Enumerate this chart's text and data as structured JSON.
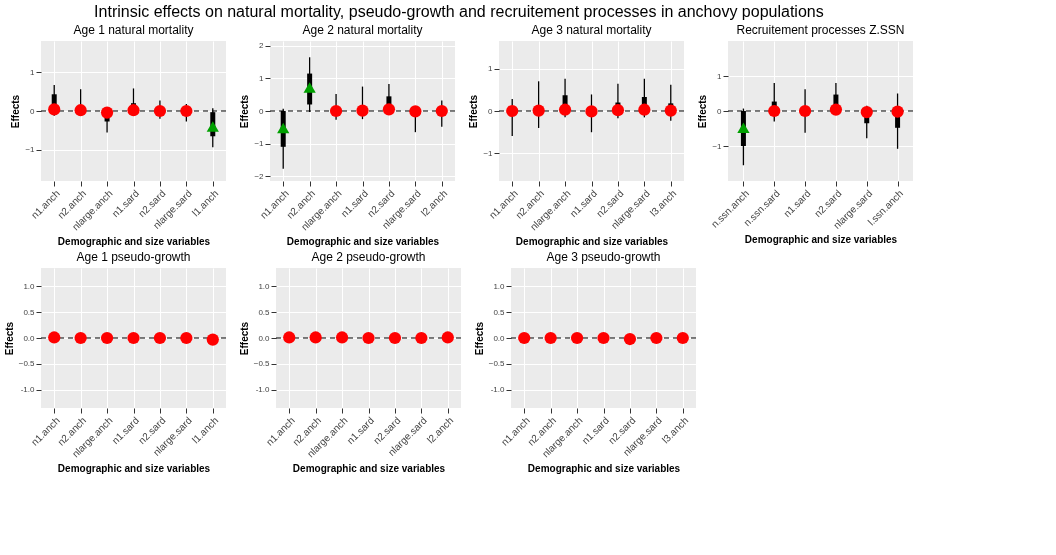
{
  "chart_data": [
    {
      "type": "box",
      "title": "Age 1 natural mortality",
      "xlabel": "Demographic and size variables",
      "ylabel": "Effects",
      "annotations": [
        "Intrinsic effects on natural mortality, pseudo-growth and recruitement processes in anchovy populations"
      ],
      "categories": [
        "n1.anch",
        "n2.anch",
        "nlarge.anch",
        "n1.sard",
        "n2.sard",
        "nlarge.sard",
        "l1.anch"
      ],
      "ylim": [
        -1.8,
        1.8
      ],
      "yticks": [
        -1,
        0,
        1
      ],
      "grid": true,
      "ref_lines": [
        {
          "axis": "y",
          "value": 0,
          "line_style": "dashed"
        }
      ],
      "series": [
        {
          "type": "box",
          "color": "#000000",
          "boxes": [
            {
              "low": -0.12,
              "q1": 0.0,
              "median": 0.04,
              "q3": 0.43,
              "high": 0.67
            },
            {
              "low": -0.12,
              "q1": -0.05,
              "median": 0.02,
              "q3": 0.15,
              "high": 0.56
            },
            {
              "low": -0.55,
              "q1": -0.27,
              "median": -0.04,
              "q3": 0.0,
              "high": 0.05
            },
            {
              "low": -0.05,
              "q1": -0.02,
              "median": 0.02,
              "q3": 0.2,
              "high": 0.58
            },
            {
              "low": -0.2,
              "q1": -0.08,
              "median": 0.0,
              "q3": 0.08,
              "high": 0.27
            },
            {
              "low": -0.27,
              "q1": -0.1,
              "median": 0.0,
              "q3": 0.05,
              "high": 0.18
            },
            {
              "low": -0.93,
              "q1": -0.65,
              "median": -0.4,
              "q3": -0.03,
              "high": 0.07
            }
          ]
        },
        {
          "type": "scatter",
          "color": "#ff0000",
          "marker": "circle",
          "values": [
            0.04,
            0.02,
            -0.04,
            0.02,
            0.0,
            0.0,
            null
          ]
        },
        {
          "type": "scatter",
          "color": "#00a000",
          "marker": "triangle",
          "values": [
            null,
            null,
            null,
            null,
            null,
            null,
            -0.4
          ]
        }
      ]
    },
    {
      "type": "box",
      "title": "Age 2 natural mortality",
      "xlabel": "Demographic and size variables",
      "ylabel": "Effects",
      "categories": [
        "n1.anch",
        "n2.anch",
        "nlarge.anch",
        "n1.sard",
        "n2.sard",
        "nlarge.sard",
        "l2.anch"
      ],
      "ylim": [
        -2.15,
        2.15
      ],
      "yticks": [
        -2,
        -1,
        0,
        1,
        2
      ],
      "grid": true,
      "ref_lines": [
        {
          "axis": "y",
          "value": 0,
          "line_style": "dashed"
        }
      ],
      "series": [
        {
          "type": "box",
          "color": "#000000",
          "boxes": [
            {
              "low": -1.77,
              "q1": -1.1,
              "median": -0.52,
              "q3": 0.0,
              "high": 0.07
            },
            {
              "low": -0.03,
              "q1": 0.2,
              "median": 0.72,
              "q3": 1.15,
              "high": 1.65
            },
            {
              "low": -0.27,
              "q1": -0.05,
              "median": 0.0,
              "q3": 0.05,
              "high": 0.52
            },
            {
              "low": -0.25,
              "q1": -0.05,
              "median": 0.01,
              "q3": 0.1,
              "high": 0.75
            },
            {
              "low": -0.05,
              "q1": 0.0,
              "median": 0.05,
              "q3": 0.45,
              "high": 0.83
            },
            {
              "low": -0.65,
              "q1": -0.1,
              "median": -0.01,
              "q3": 0.05,
              "high": 0.13
            },
            {
              "low": -0.48,
              "q1": -0.15,
              "median": 0.0,
              "q3": 0.08,
              "high": 0.32
            }
          ]
        },
        {
          "type": "scatter",
          "color": "#ff0000",
          "marker": "circle",
          "values": [
            null,
            null,
            0.0,
            0.01,
            0.05,
            -0.01,
            0.0
          ]
        },
        {
          "type": "scatter",
          "color": "#00a000",
          "marker": "triangle",
          "values": [
            -0.52,
            0.72,
            null,
            null,
            null,
            null,
            null
          ]
        }
      ]
    },
    {
      "type": "box",
      "title": "Age 3 natural mortality",
      "xlabel": "Demographic and size variables",
      "ylabel": "Effects",
      "categories": [
        "n1.anch",
        "n2.anch",
        "nlarge.anch",
        "n1.sard",
        "n2.sard",
        "nlarge.sard",
        "l3.anch"
      ],
      "ylim": [
        -1.65,
        1.65
      ],
      "yticks": [
        -1,
        0,
        1
      ],
      "grid": true,
      "ref_lines": [
        {
          "axis": "y",
          "value": 0,
          "line_style": "dashed"
        }
      ],
      "series": [
        {
          "type": "box",
          "color": "#000000",
          "boxes": [
            {
              "low": -0.59,
              "q1": -0.1,
              "median": 0.0,
              "q3": 0.05,
              "high": 0.28
            },
            {
              "low": -0.4,
              "q1": -0.05,
              "median": 0.01,
              "q3": 0.1,
              "high": 0.7
            },
            {
              "low": -0.15,
              "q1": 0.0,
              "median": 0.03,
              "q3": 0.37,
              "high": 0.76
            },
            {
              "low": -0.5,
              "q1": -0.08,
              "median": -0.01,
              "q3": 0.05,
              "high": 0.39
            },
            {
              "low": -0.17,
              "q1": -0.02,
              "median": 0.02,
              "q3": 0.2,
              "high": 0.64
            },
            {
              "low": -0.15,
              "q1": 0.0,
              "median": 0.03,
              "q3": 0.33,
              "high": 0.76
            },
            {
              "low": -0.23,
              "q1": -0.03,
              "median": 0.01,
              "q3": 0.18,
              "high": 0.62
            }
          ]
        },
        {
          "type": "scatter",
          "color": "#ff0000",
          "marker": "circle",
          "values": [
            0.0,
            0.01,
            0.03,
            -0.01,
            0.02,
            0.03,
            0.01
          ]
        }
      ]
    },
    {
      "type": "box",
      "title": "Recruitement processes Z.SSN",
      "xlabel": "Demographic and size variables",
      "ylabel": "Effects",
      "categories": [
        "n.ssn.anch",
        "n.ssn.sard",
        "n1.sard",
        "n2.sard",
        "nlarge.sard",
        "l.ssn.anch"
      ],
      "ylim": [
        -2.0,
        2.0
      ],
      "yticks": [
        -1,
        0,
        1
      ],
      "grid": true,
      "ref_lines": [
        {
          "axis": "y",
          "value": 0,
          "line_style": "dashed"
        }
      ],
      "series": [
        {
          "type": "box",
          "color": "#000000",
          "boxes": [
            {
              "low": -1.55,
              "q1": -1.0,
              "median": -0.48,
              "q3": 0.0,
              "high": 0.07
            },
            {
              "low": -0.3,
              "q1": -0.05,
              "median": 0.0,
              "q3": 0.27,
              "high": 0.8
            },
            {
              "low": -0.62,
              "q1": -0.08,
              "median": 0.0,
              "q3": 0.08,
              "high": 0.62
            },
            {
              "low": -0.05,
              "q1": 0.0,
              "median": 0.04,
              "q3": 0.47,
              "high": 0.8
            },
            {
              "low": -0.78,
              "q1": -0.35,
              "median": -0.03,
              "q3": 0.0,
              "high": 0.15
            },
            {
              "low": -1.08,
              "q1": -0.48,
              "median": -0.02,
              "q3": 0.05,
              "high": 0.5
            }
          ]
        },
        {
          "type": "scatter",
          "color": "#ff0000",
          "marker": "circle",
          "values": [
            null,
            0.0,
            0.0,
            0.04,
            -0.03,
            -0.02
          ]
        },
        {
          "type": "scatter",
          "color": "#00a000",
          "marker": "triangle",
          "values": [
            -0.48,
            null,
            null,
            null,
            null,
            null
          ]
        }
      ]
    },
    {
      "type": "scatter",
      "title": "Age 1 pseudo-growth",
      "xlabel": "Demographic and size variables",
      "ylabel": "Effects",
      "categories": [
        "n1.anch",
        "n2.anch",
        "nlarge.anch",
        "n1.sard",
        "n2.sard",
        "nlarge.sard",
        "l1.anch"
      ],
      "ylim": [
        -1.35,
        1.35
      ],
      "yticks": [
        {
          "value": -1,
          "label": "-1.0"
        },
        -0.5,
        {
          "value": 0,
          "label": "0.0"
        },
        0.5,
        {
          "value": 1,
          "label": "1.0"
        }
      ],
      "grid": true,
      "marker": "circle",
      "ref_lines": [
        {
          "axis": "y",
          "value": 0,
          "line_style": "dashed"
        }
      ],
      "series": [
        {
          "color": "#ff0000",
          "values": [
            0.01,
            0.0,
            0.0,
            0.0,
            0.0,
            0.0,
            -0.03
          ]
        }
      ]
    },
    {
      "type": "scatter",
      "title": "Age 2 pseudo-growth",
      "xlabel": "Demographic and size variables",
      "ylabel": "Effects",
      "categories": [
        "n1.anch",
        "n2.anch",
        "nlarge.anch",
        "n1.sard",
        "n2.sard",
        "nlarge.sard",
        "l2.anch"
      ],
      "ylim": [
        -1.35,
        1.35
      ],
      "yticks": [
        {
          "value": -1,
          "label": "-1.0"
        },
        -0.5,
        {
          "value": 0,
          "label": "0.0"
        },
        0.5,
        {
          "value": 1,
          "label": "1.0"
        }
      ],
      "grid": true,
      "marker": "circle",
      "ref_lines": [
        {
          "axis": "y",
          "value": 0,
          "line_style": "dashed"
        }
      ],
      "series": [
        {
          "color": "#ff0000",
          "values": [
            0.01,
            0.01,
            0.01,
            0.0,
            0.0,
            0.0,
            0.01
          ]
        }
      ]
    },
    {
      "type": "scatter",
      "title": "Age 3 pseudo-growth",
      "xlabel": "Demographic and size variables",
      "ylabel": "Effects",
      "categories": [
        "n1.anch",
        "n2.anch",
        "nlarge.anch",
        "n1.sard",
        "n2.sard",
        "nlarge.sard",
        "l3.anch"
      ],
      "ylim": [
        -1.35,
        1.35
      ],
      "yticks": [
        {
          "value": -1,
          "label": "-1.0"
        },
        -0.5,
        {
          "value": 0,
          "label": "0.0"
        },
        0.5,
        {
          "value": 1,
          "label": "1.0"
        }
      ],
      "grid": true,
      "marker": "circle",
      "ref_lines": [
        {
          "axis": "y",
          "value": 0,
          "line_style": "dashed"
        }
      ],
      "series": [
        {
          "color": "#ff0000",
          "values": [
            0.0,
            0.0,
            0.0,
            0.0,
            -0.02,
            0.0,
            0.0
          ]
        }
      ]
    }
  ]
}
